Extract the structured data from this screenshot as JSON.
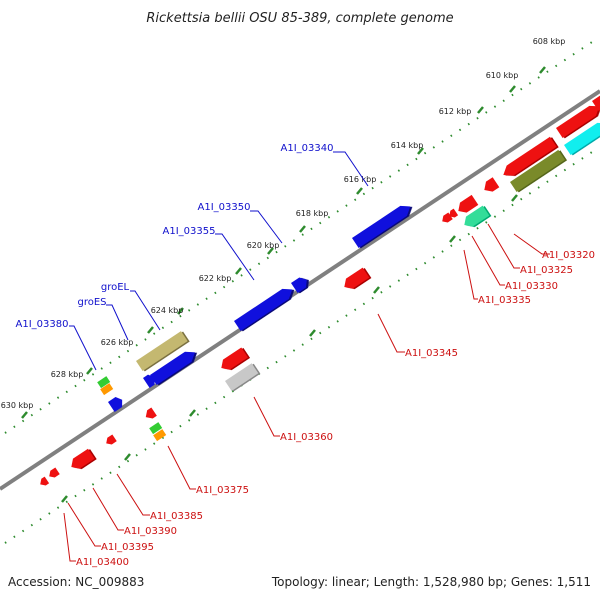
{
  "title": "Rickettsia bellii OSU 85-389, complete genome",
  "footer": {
    "accession": "Accession: NC_009883",
    "summary": "Topology: linear; Length: 1,528,980 bp; Genes: 1,511"
  },
  "ticks": [
    "608 kbp",
    "610 kbp",
    "612 kbp",
    "614 kbp",
    "616 kbp",
    "618 kbp",
    "620 kbp",
    "622 kbp",
    "624 kbp",
    "626 kbp",
    "628 kbp",
    "630 kbp"
  ],
  "forward_labels": [
    "A1I_03340",
    "A1I_03350",
    "A1I_03355",
    "groEL",
    "groES",
    "A1I_03380"
  ],
  "reverse_labels": [
    "A1I_03320",
    "A1I_03325",
    "A1I_03330",
    "A1I_03335",
    "A1I_03345",
    "A1I_03360",
    "A1I_03375",
    "A1I_03385",
    "A1I_03390",
    "A1I_03395",
    "A1I_03400"
  ],
  "colors": {
    "forward_label": "#1010cc",
    "reverse_label": "#cc1010",
    "backbone": "#808080",
    "tick_dot": "#2e8b2e"
  }
}
